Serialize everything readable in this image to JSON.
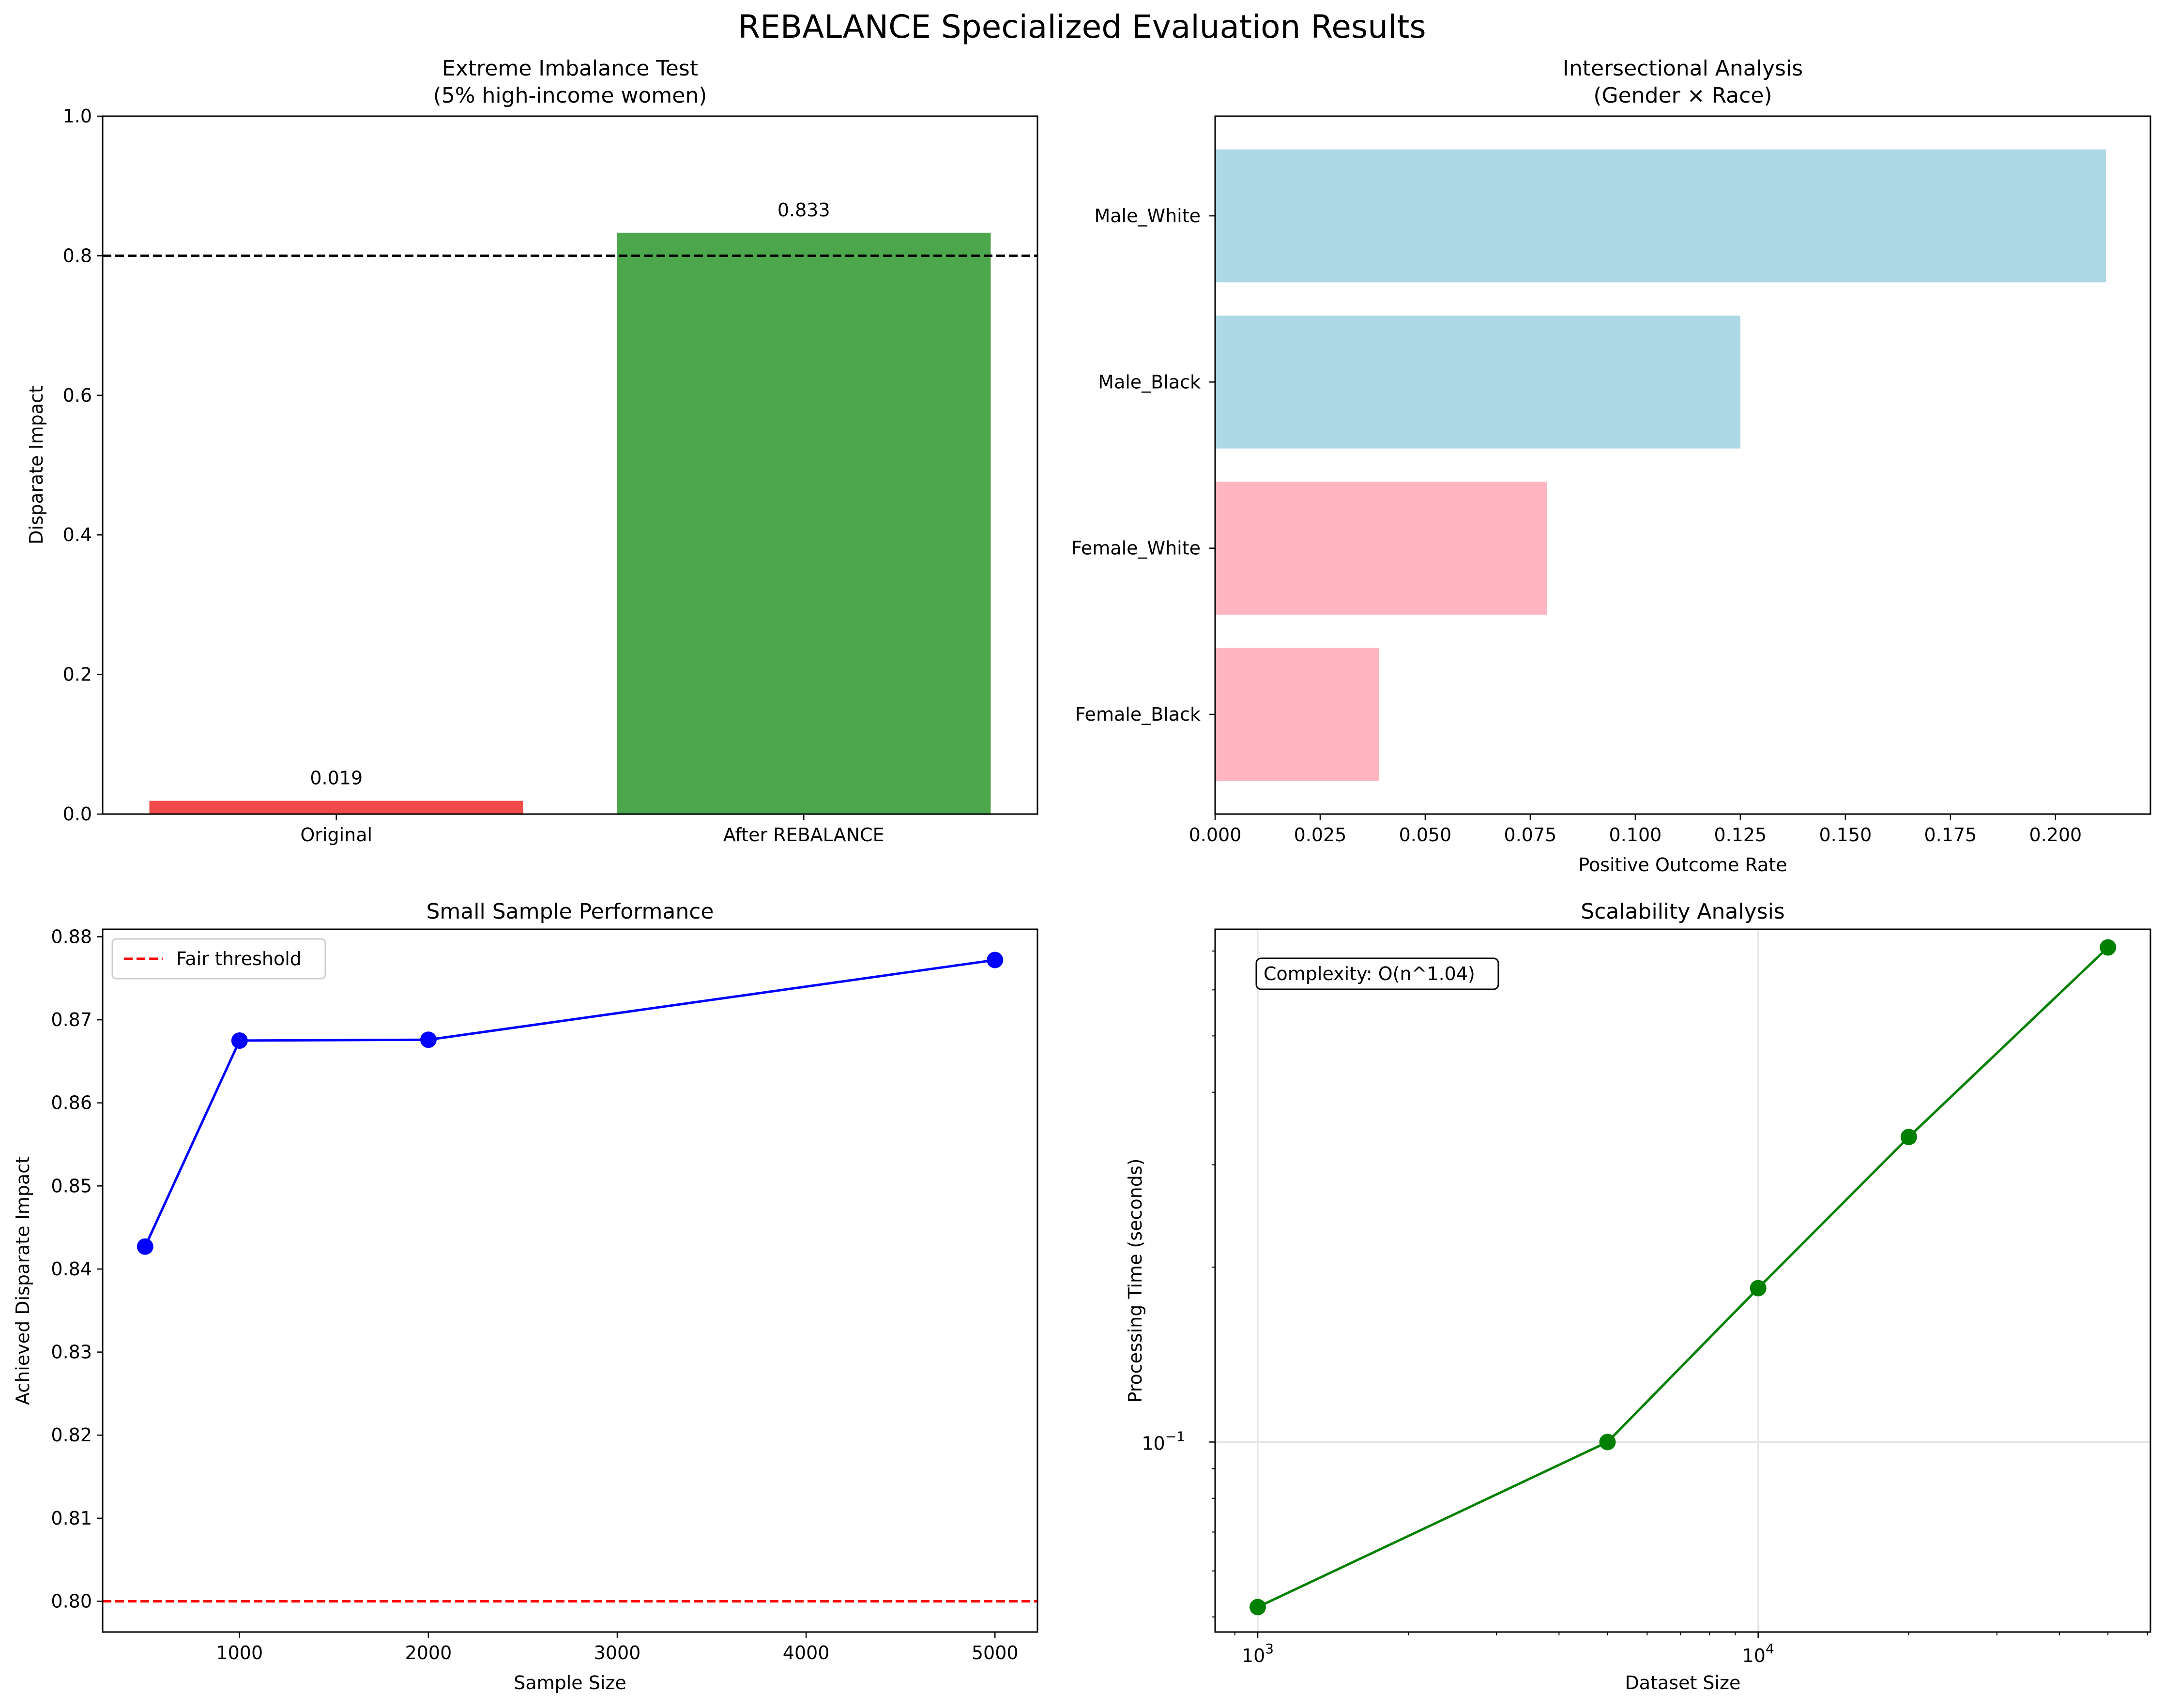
{
  "suptitle": "REBALANCE Specialized Evaluation Results",
  "colors": {
    "red_bar": "#f04a4a",
    "green_bar": "#4ca64c",
    "male_bar": "#add8e6",
    "female_bar": "#ffb6c1",
    "blue_line": "#0000ff",
    "green_line": "#008000",
    "fair_line": "#ff0000"
  },
  "chart_data": [
    {
      "id": "imbalance",
      "type": "bar",
      "title_lines": [
        "Extreme Imbalance Test",
        "(5% high-income women)"
      ],
      "xlabel": "",
      "ylabel": "Disparate Impact",
      "categories": [
        "Original",
        "After REBALANCE"
      ],
      "values": [
        0.019,
        0.833
      ],
      "data_labels": [
        "0.019",
        "0.833"
      ],
      "bar_colors": [
        "#f04a4a",
        "#4ca64c"
      ],
      "ylim": [
        0,
        1.0
      ],
      "yticks": [
        0.0,
        0.2,
        0.4,
        0.6,
        0.8,
        1.0
      ],
      "ytick_labels": [
        "0.0",
        "0.2",
        "0.4",
        "0.6",
        "0.8",
        "1.0"
      ],
      "hline": {
        "y": 0.8,
        "style": "dashed",
        "color": "#000000"
      },
      "grid": false
    },
    {
      "id": "intersectional",
      "type": "bar",
      "orientation": "horizontal",
      "title_lines": [
        "Intersectional Analysis",
        "(Gender × Race)"
      ],
      "xlabel": "Positive Outcome Rate",
      "ylabel": "",
      "categories": [
        "Male_White",
        "Male_Black",
        "Female_White",
        "Female_Black"
      ],
      "values": [
        0.212,
        0.125,
        0.079,
        0.039
      ],
      "bar_colors": [
        "#add8e6",
        "#add8e6",
        "#ffb6c1",
        "#ffb6c1"
      ],
      "xlim": [
        0,
        0.2226
      ],
      "xticks": [
        0.0,
        0.025,
        0.05,
        0.075,
        0.1,
        0.125,
        0.15,
        0.175,
        0.2
      ],
      "xtick_labels": [
        "0.000",
        "0.025",
        "0.050",
        "0.075",
        "0.100",
        "0.125",
        "0.150",
        "0.175",
        "0.200"
      ],
      "grid": false
    },
    {
      "id": "small_sample",
      "type": "line",
      "title_lines": [
        "Small Sample Performance"
      ],
      "xlabel": "Sample Size",
      "ylabel": "Achieved Disparate Impact",
      "x": [
        500,
        1000,
        2000,
        5000
      ],
      "series": [
        {
          "values": [
            0.8427,
            0.8675,
            0.8676,
            0.8772
          ],
          "color": "#0000ff"
        }
      ],
      "xlim": [
        275,
        5225
      ],
      "ylim": [
        0.7963,
        0.8809
      ],
      "xticks": [
        1000,
        2000,
        3000,
        4000,
        5000
      ],
      "xtick_labels": [
        "1000",
        "2000",
        "3000",
        "4000",
        "5000"
      ],
      "yticks": [
        0.8,
        0.81,
        0.82,
        0.83,
        0.84,
        0.85,
        0.86,
        0.87,
        0.88
      ],
      "ytick_labels": [
        "0.80",
        "0.81",
        "0.82",
        "0.83",
        "0.84",
        "0.85",
        "0.86",
        "0.87",
        "0.88"
      ],
      "hline": {
        "y": 0.8,
        "style": "dashed",
        "color": "#ff0000",
        "label": "Fair threshold"
      },
      "legend": {
        "position": "upper left",
        "entries": [
          "Fair threshold"
        ]
      },
      "grid": false
    },
    {
      "id": "scalability",
      "type": "line",
      "title_lines": [
        "Scalability Analysis"
      ],
      "xlabel": "Dataset Size",
      "ylabel": "Processing Time (seconds)",
      "x": [
        1000,
        5000,
        10000,
        20000,
        50000
      ],
      "series": [
        {
          "values": [
            0.052,
            0.1,
            0.184,
            0.335,
            0.71
          ],
          "color": "#008000"
        }
      ],
      "xscale": "log",
      "yscale": "log",
      "xlim": [
        822,
        60800
      ],
      "ylim": [
        0.0471,
        0.763
      ],
      "xticks_major": [
        1000,
        10000
      ],
      "xtick_labels": [
        "10",
        "10"
      ],
      "xtick_exponents": [
        "3",
        "4"
      ],
      "yticks_major": [
        0.1
      ],
      "ytick_labels": [
        "10"
      ],
      "ytick_exponents": [
        "−1"
      ],
      "annotation": "Complexity: O(n^1.04)",
      "grid": true
    }
  ]
}
